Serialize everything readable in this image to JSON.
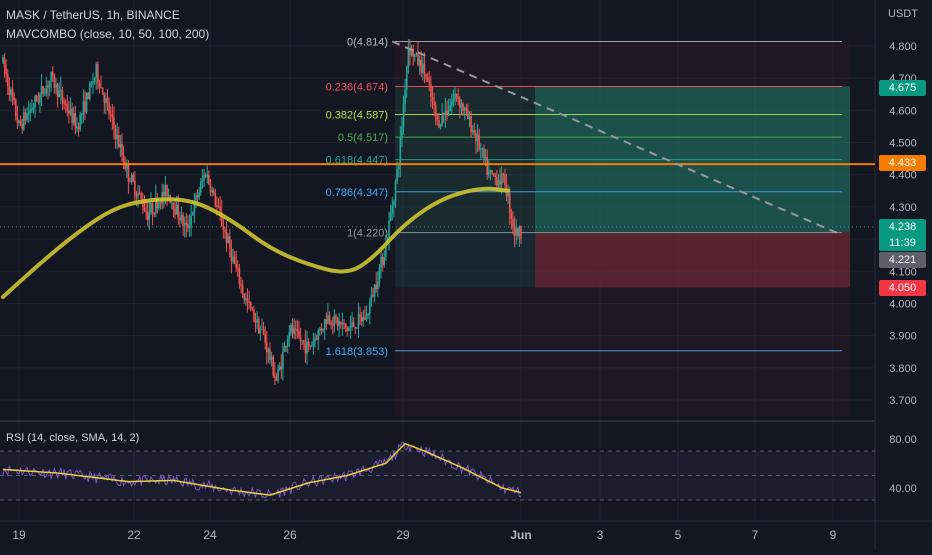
{
  "header": {
    "title": "MASK / TetherUS, 1h, BINANCE",
    "indicator": "MAVCOMBO (close, 10, 50, 100, 200)",
    "rsi": "RSI (14, close, SMA, 14, 2)"
  },
  "axis": {
    "currency": "USDT",
    "price_ticks": [
      "4.800",
      "4.700",
      "4.600",
      "4.500",
      "4.400",
      "4.300",
      "4.200",
      "4.100",
      "4.000",
      "3.900",
      "3.800",
      "3.700"
    ],
    "rsi_ticks": [
      "80.00",
      "40.00"
    ],
    "date_ticks": [
      "19",
      "22",
      "24",
      "26",
      "29",
      "Jun",
      "3",
      "5",
      "7",
      "9"
    ]
  },
  "badges": {
    "target": "4.675",
    "resistance": "4.433",
    "last_price": "4.238",
    "countdown": "11:39",
    "entry": "4.221",
    "stop": "4.050"
  },
  "fib_labels": [
    {
      "text": "0(4.814)",
      "value": 4.814,
      "color": "#b2b5be"
    },
    {
      "text": "0.236(4.674)",
      "value": 4.674,
      "color": "#f7525f"
    },
    {
      "text": "0.382(4.587)",
      "value": 4.587,
      "color": "#b5e157"
    },
    {
      "text": "0.5(4.517)",
      "value": 4.517,
      "color": "#4caf50"
    },
    {
      "text": "0.618(4.447)",
      "value": 4.447,
      "color": "#26a69a"
    },
    {
      "text": "0.786(4.347)",
      "value": 4.347,
      "color": "#42a5f5"
    },
    {
      "text": "1(4.220)",
      "value": 4.22,
      "color": "#9598a1"
    },
    {
      "text": "1.618(3.853)",
      "value": 3.853,
      "color": "#42a5f5"
    }
  ],
  "colors": {
    "background": "#131722",
    "up": "#26a69a",
    "down": "#ef5350",
    "ma": "#c9c030",
    "resistance": "#f57c00",
    "target_zone": "#1a7f6e",
    "stop_zone": "#7a2a36",
    "rsi_line": "#7e57c2",
    "rsi_ma": "#e6d13a"
  },
  "chart_data": {
    "type": "candlestick",
    "symbol": "MASK / TetherUS",
    "timeframe": "1h",
    "exchange": "BINANCE",
    "price_axis_unit": "USDT",
    "ylim": [
      3.65,
      4.86
    ],
    "x_range": [
      "May 18 14:00",
      "Jun 10 00:00"
    ],
    "resistance_level": 4.433,
    "position": {
      "entry": 4.221,
      "target": 4.675,
      "stop": 4.05,
      "start": "May 28 16:00",
      "end": "Jun 9 20:00"
    },
    "fibonacci": [
      {
        "ratio": 0,
        "price": 4.814
      },
      {
        "ratio": 0.236,
        "price": 4.674
      },
      {
        "ratio": 0.382,
        "price": 4.587
      },
      {
        "ratio": 0.5,
        "price": 4.517
      },
      {
        "ratio": 0.618,
        "price": 4.447
      },
      {
        "ratio": 0.786,
        "price": 4.347
      },
      {
        "ratio": 1,
        "price": 4.22
      },
      {
        "ratio": 1.618,
        "price": 3.853
      }
    ],
    "trendline": [
      {
        "date": "May 28 16:00",
        "price": 4.814
      },
      {
        "date": "Jun 9 16:00",
        "price": 4.218
      }
    ],
    "moving_average": [
      {
        "date": "May 18 14:00",
        "value": 4.02
      },
      {
        "date": "May 19 12:00",
        "value": 4.12
      },
      {
        "date": "May 20 12:00",
        "value": 4.22
      },
      {
        "date": "May 21 12:00",
        "value": 4.3
      },
      {
        "date": "May 22 12:00",
        "value": 4.325
      },
      {
        "date": "May 23 12:00",
        "value": 4.322
      },
      {
        "date": "May 24 12:00",
        "value": 4.26
      },
      {
        "date": "May 25 12:00",
        "value": 4.17
      },
      {
        "date": "May 26 12:00",
        "value": 4.12
      },
      {
        "date": "May 27 12:00",
        "value": 4.09
      },
      {
        "date": "May 28 04:00",
        "value": 4.14
      },
      {
        "date": "May 29 00:00",
        "value": 4.25
      },
      {
        "date": "May 30 00:00",
        "value": 4.33
      },
      {
        "date": "May 31 00:00",
        "value": 4.36
      },
      {
        "date": "May 31 16:00",
        "value": 4.35
      }
    ],
    "price_path": [
      {
        "date": "May 18 14:00",
        "price": 4.75
      },
      {
        "date": "May 19 00:00",
        "price": 4.55
      },
      {
        "date": "May 19 20:00",
        "price": 4.7
      },
      {
        "date": "May 20 12:00",
        "price": 4.55
      },
      {
        "date": "May 21 00:00",
        "price": 4.72
      },
      {
        "date": "May 21 20:00",
        "price": 4.4
      },
      {
        "date": "May 22 08:00",
        "price": 4.28
      },
      {
        "date": "May 22 20:00",
        "price": 4.35
      },
      {
        "date": "May 23 08:00",
        "price": 4.23
      },
      {
        "date": "May 23 20:00",
        "price": 4.41
      },
      {
        "date": "May 24 08:00",
        "price": 4.22
      },
      {
        "date": "May 24 20:00",
        "price": 4.02
      },
      {
        "date": "May 25 08:00",
        "price": 3.9
      },
      {
        "date": "May 25 16:00",
        "price": 3.76
      },
      {
        "date": "May 26 00:00",
        "price": 3.92
      },
      {
        "date": "May 26 12:00",
        "price": 3.86
      },
      {
        "date": "May 27 00:00",
        "price": 3.96
      },
      {
        "date": "May 27 12:00",
        "price": 3.92
      },
      {
        "date": "May 28 00:00",
        "price": 3.96
      },
      {
        "date": "May 28 12:00",
        "price": 4.18
      },
      {
        "date": "May 28 20:00",
        "price": 4.44
      },
      {
        "date": "May 29 02:00",
        "price": 4.8
      },
      {
        "date": "May 29 12:00",
        "price": 4.72
      },
      {
        "date": "May 29 20:00",
        "price": 4.56
      },
      {
        "date": "May 30 08:00",
        "price": 4.65
      },
      {
        "date": "May 30 20:00",
        "price": 4.52
      },
      {
        "date": "May 31 04:00",
        "price": 4.4
      },
      {
        "date": "May 31 14:00",
        "price": 4.38
      },
      {
        "date": "May 31 20:00",
        "price": 4.22
      },
      {
        "date": "Jun 1 00:00",
        "price": 4.22
      }
    ],
    "rsi": {
      "period": 14,
      "ma_type": "SMA",
      "ma_length": 14,
      "levels": [
        70,
        50,
        30
      ],
      "path": [
        {
          "date": "May 18 14:00",
          "value": 55
        },
        {
          "date": "May 20 00:00",
          "value": 52
        },
        {
          "date": "May 21 20:00",
          "value": 45
        },
        {
          "date": "May 23 00:00",
          "value": 46
        },
        {
          "date": "May 24 12:00",
          "value": 38
        },
        {
          "date": "May 25 12:00",
          "value": 34
        },
        {
          "date": "May 26 12:00",
          "value": 44
        },
        {
          "date": "May 27 12:00",
          "value": 50
        },
        {
          "date": "May 28 12:00",
          "value": 60
        },
        {
          "date": "May 29 00:00",
          "value": 76
        },
        {
          "date": "May 29 12:00",
          "value": 70
        },
        {
          "date": "May 30 12:00",
          "value": 56
        },
        {
          "date": "May 31 12:00",
          "value": 40
        },
        {
          "date": "Jun 1 00:00",
          "value": 36
        }
      ]
    }
  }
}
